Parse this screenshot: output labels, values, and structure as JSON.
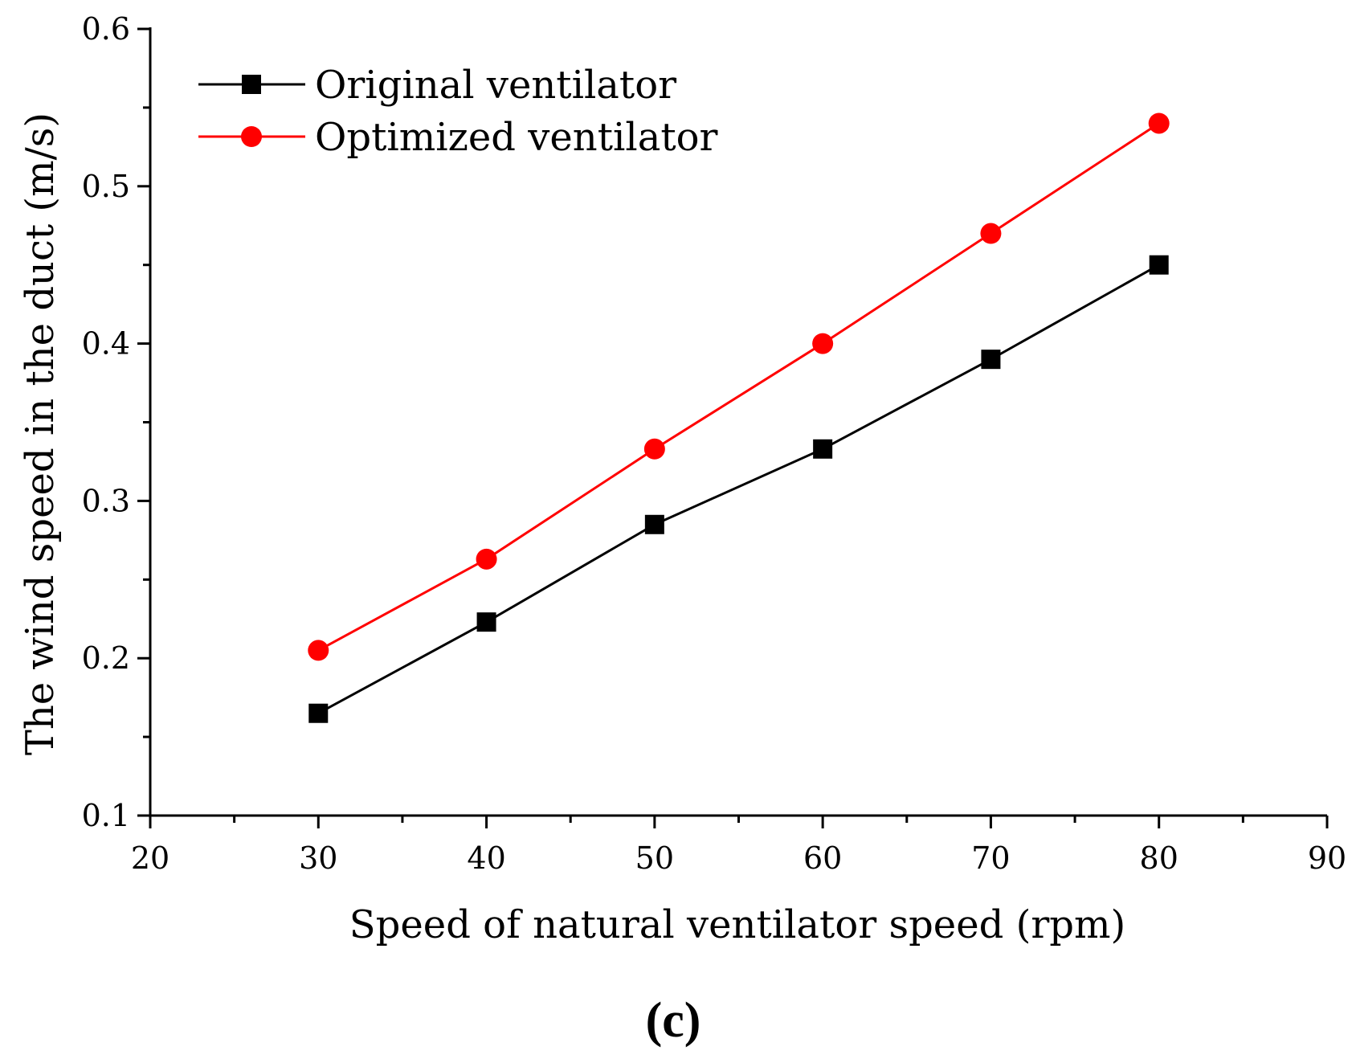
{
  "chart_data": {
    "type": "line",
    "title": "",
    "xlabel": "Speed of natural ventilator speed (rpm)",
    "ylabel": "The wind speed in the duct (m/s)",
    "xlim": [
      20,
      90
    ],
    "ylim": [
      0.1,
      0.6
    ],
    "xticks": [
      20,
      30,
      40,
      50,
      60,
      70,
      80,
      90
    ],
    "xtick_labels": [
      "20",
      "30",
      "40",
      "50",
      "60",
      "70",
      "80",
      "90"
    ],
    "yticks": [
      0.1,
      0.2,
      0.3,
      0.4,
      0.5,
      0.6
    ],
    "ytick_labels": [
      "0.1",
      "0.2",
      "0.3",
      "0.4",
      "0.5",
      "0.6"
    ],
    "grid": false,
    "legend_position": "top-left",
    "panel_label": "(c)",
    "series": [
      {
        "name": "Original ventilator",
        "color": "#000000",
        "marker": "square",
        "x": [
          30,
          40,
          50,
          60,
          70,
          80
        ],
        "y": [
          0.165,
          0.223,
          0.285,
          0.333,
          0.39,
          0.45
        ]
      },
      {
        "name": "Optimized ventilator",
        "color": "#ff0000",
        "marker": "circle",
        "x": [
          30,
          40,
          50,
          60,
          70,
          80
        ],
        "y": [
          0.205,
          0.263,
          0.333,
          0.4,
          0.47,
          0.54
        ]
      }
    ]
  }
}
